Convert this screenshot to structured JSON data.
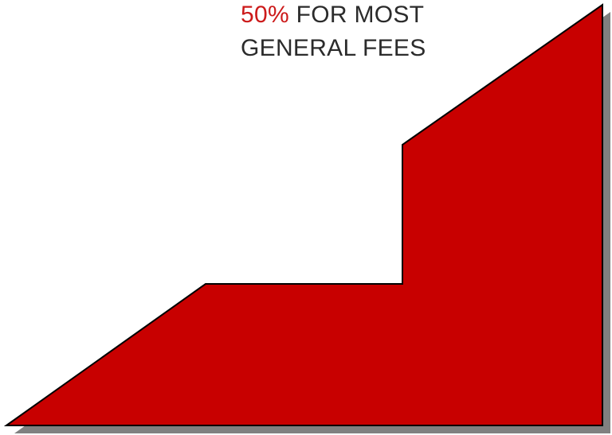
{
  "caption": {
    "line1_highlight": "50%",
    "line1_rest": " FOR MOST",
    "line2": "GENERAL FEES"
  },
  "colors": {
    "fill": "#c80000",
    "shadow": "#808080",
    "outline": "#000000",
    "highlight_text": "#cc1a1a",
    "body_text": "#2b2b2b"
  },
  "icons": [
    "stepped-bar-shape"
  ]
}
